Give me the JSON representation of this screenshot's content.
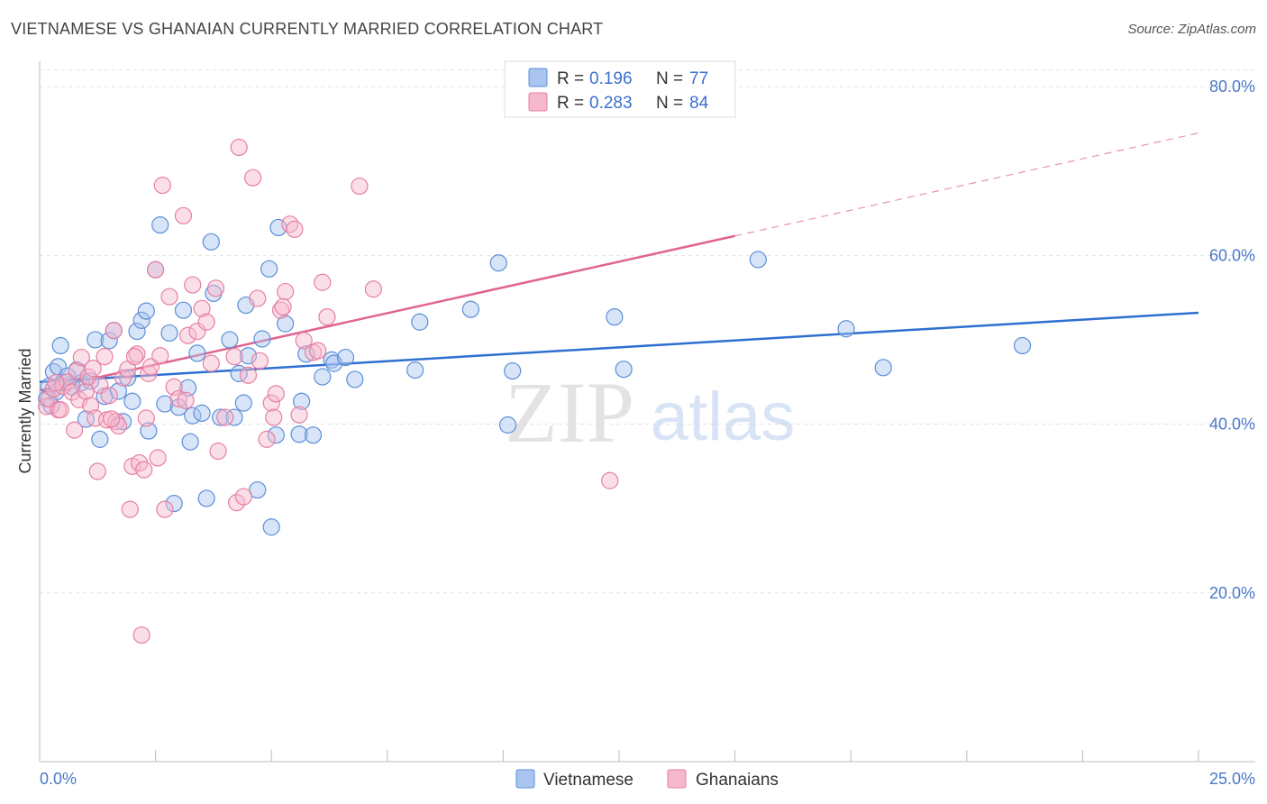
{
  "title": "VIETNAMESE VS GHANAIAN CURRENTLY MARRIED CORRELATION CHART",
  "source": "Source: ZipAtlas.com",
  "chart_data": {
    "type": "scatter",
    "ylabel": "Currently Married",
    "xlim": [
      0,
      25
    ],
    "ylim": [
      0,
      83
    ],
    "x_tick_labels": [
      "0.0%",
      "25.0%"
    ],
    "y_ticks": [
      20,
      40,
      60,
      80
    ],
    "y_tick_labels": [
      "20.0%",
      "40.0%",
      "60.0%",
      "80.0%"
    ],
    "grid": true,
    "watermark": {
      "zip": "ZIP",
      "atlas": "atlas"
    },
    "legend": [
      {
        "r_label": "R =",
        "r_value": "0.196",
        "n_label": "N =",
        "n_value": "77",
        "color": "#a9c4ee",
        "stroke": "#5b8fd9"
      },
      {
        "r_label": "R =",
        "r_value": "0.283",
        "n_label": "N =",
        "n_value": "84",
        "color": "#f6b8cc",
        "stroke": "#e77fa3"
      }
    ],
    "series": [
      {
        "name": "Vietnamese",
        "fill": "rgba(169,196,238,0.45)",
        "stroke": "#5b8fd9",
        "line_color": "#2f6fd1",
        "trend": {
          "x0": 0,
          "y0": 45.0,
          "x1": 25,
          "y1": 53.2,
          "solid_to": 25
        },
        "points": [
          [
            0.2,
            44.5
          ],
          [
            0.3,
            46.2
          ],
          [
            0.35,
            43.8
          ],
          [
            0.4,
            46.8
          ],
          [
            0.45,
            49.3
          ],
          [
            0.5,
            44.9
          ],
          [
            0.6,
            45.7
          ],
          [
            0.7,
            44.4
          ],
          [
            0.8,
            46.4
          ],
          [
            0.9,
            44.9
          ],
          [
            1.0,
            40.6
          ],
          [
            1.1,
            45.1
          ],
          [
            1.2,
            50.0
          ],
          [
            1.3,
            38.2
          ],
          [
            1.4,
            43.3
          ],
          [
            1.5,
            49.9
          ],
          [
            1.6,
            51.1
          ],
          [
            1.7,
            43.9
          ],
          [
            1.8,
            40.3
          ],
          [
            1.9,
            45.5
          ],
          [
            2.0,
            42.7
          ],
          [
            2.1,
            51.0
          ],
          [
            2.2,
            52.3
          ],
          [
            2.3,
            53.4
          ],
          [
            2.35,
            39.2
          ],
          [
            2.5,
            58.3
          ],
          [
            2.6,
            63.6
          ],
          [
            2.7,
            42.4
          ],
          [
            2.8,
            50.8
          ],
          [
            2.9,
            30.6
          ],
          [
            3.0,
            42.0
          ],
          [
            3.1,
            53.5
          ],
          [
            3.2,
            44.3
          ],
          [
            3.25,
            37.9
          ],
          [
            3.3,
            41.0
          ],
          [
            3.4,
            48.4
          ],
          [
            3.5,
            41.3
          ],
          [
            3.6,
            31.2
          ],
          [
            3.7,
            61.6
          ],
          [
            3.75,
            55.5
          ],
          [
            3.9,
            40.8
          ],
          [
            4.1,
            50.0
          ],
          [
            4.2,
            40.8
          ],
          [
            4.3,
            46.0
          ],
          [
            4.4,
            42.5
          ],
          [
            4.45,
            54.1
          ],
          [
            4.5,
            48.1
          ],
          [
            4.7,
            32.2
          ],
          [
            4.8,
            50.1
          ],
          [
            4.95,
            58.4
          ],
          [
            5.0,
            27.8
          ],
          [
            5.1,
            38.7
          ],
          [
            5.15,
            63.3
          ],
          [
            5.3,
            51.9
          ],
          [
            5.6,
            38.8
          ],
          [
            5.65,
            42.7
          ],
          [
            5.75,
            48.3
          ],
          [
            5.9,
            38.7
          ],
          [
            6.1,
            45.6
          ],
          [
            6.3,
            47.6
          ],
          [
            6.35,
            47.2
          ],
          [
            6.6,
            47.9
          ],
          [
            6.8,
            45.3
          ],
          [
            8.2,
            52.1
          ],
          [
            8.1,
            46.4
          ],
          [
            9.3,
            53.6
          ],
          [
            9.9,
            59.1
          ],
          [
            10.2,
            46.3
          ],
          [
            10.1,
            39.9
          ],
          [
            12.4,
            52.7
          ],
          [
            12.6,
            46.5
          ],
          [
            15.5,
            59.5
          ],
          [
            17.4,
            51.3
          ],
          [
            18.2,
            46.7
          ],
          [
            21.2,
            49.3
          ],
          [
            0.15,
            43.0
          ],
          [
            0.25,
            42.2
          ]
        ]
      },
      {
        "name": "Ghanaians",
        "fill": "rgba(246,184,204,0.45)",
        "stroke": "#e77fa3",
        "line_color": "#e0648f",
        "trend": {
          "x0": 0,
          "y0": 44.0,
          "x1": 25,
          "y1": 74.5,
          "solid_to": 15
        },
        "points": [
          [
            0.15,
            42.1
          ],
          [
            0.2,
            43.0
          ],
          [
            0.3,
            44.2
          ],
          [
            0.4,
            41.7
          ],
          [
            0.5,
            44.5
          ],
          [
            0.6,
            45.0
          ],
          [
            0.7,
            43.8
          ],
          [
            0.75,
            39.3
          ],
          [
            0.8,
            46.3
          ],
          [
            0.85,
            42.9
          ],
          [
            0.9,
            47.9
          ],
          [
            1.0,
            43.9
          ],
          [
            1.05,
            45.6
          ],
          [
            1.1,
            42.2
          ],
          [
            1.2,
            40.7
          ],
          [
            1.25,
            34.4
          ],
          [
            1.3,
            44.6
          ],
          [
            1.4,
            48.0
          ],
          [
            1.45,
            40.5
          ],
          [
            1.5,
            43.4
          ],
          [
            1.6,
            51.1
          ],
          [
            1.65,
            40.3
          ],
          [
            1.7,
            39.8
          ],
          [
            1.8,
            45.5
          ],
          [
            1.9,
            46.5
          ],
          [
            1.95,
            29.9
          ],
          [
            2.0,
            35.0
          ],
          [
            2.1,
            48.3
          ],
          [
            2.15,
            35.4
          ],
          [
            2.2,
            15.0
          ],
          [
            2.25,
            34.6
          ],
          [
            2.3,
            40.7
          ],
          [
            2.35,
            46.0
          ],
          [
            2.4,
            46.8
          ],
          [
            2.5,
            58.3
          ],
          [
            2.55,
            36.0
          ],
          [
            2.6,
            48.1
          ],
          [
            2.65,
            68.3
          ],
          [
            2.7,
            29.9
          ],
          [
            2.8,
            55.1
          ],
          [
            2.9,
            44.4
          ],
          [
            3.0,
            43.0
          ],
          [
            3.1,
            64.7
          ],
          [
            3.2,
            50.5
          ],
          [
            3.3,
            56.5
          ],
          [
            3.4,
            51.0
          ],
          [
            3.5,
            53.7
          ],
          [
            3.6,
            52.1
          ],
          [
            3.7,
            47.2
          ],
          [
            3.8,
            56.1
          ],
          [
            3.85,
            36.8
          ],
          [
            4.0,
            40.8
          ],
          [
            4.2,
            48.0
          ],
          [
            4.25,
            30.7
          ],
          [
            4.3,
            72.8
          ],
          [
            4.4,
            31.4
          ],
          [
            4.5,
            45.8
          ],
          [
            4.6,
            69.2
          ],
          [
            4.7,
            54.9
          ],
          [
            4.75,
            47.5
          ],
          [
            4.9,
            38.2
          ],
          [
            5.0,
            42.5
          ],
          [
            5.05,
            40.8
          ],
          [
            5.1,
            43.6
          ],
          [
            5.2,
            53.5
          ],
          [
            5.3,
            55.7
          ],
          [
            5.4,
            63.7
          ],
          [
            5.5,
            63.1
          ],
          [
            5.6,
            41.1
          ],
          [
            5.7,
            49.9
          ],
          [
            5.9,
            48.5
          ],
          [
            6.0,
            48.7
          ],
          [
            6.1,
            56.8
          ],
          [
            6.2,
            52.7
          ],
          [
            6.9,
            68.2
          ],
          [
            7.2,
            56.0
          ],
          [
            0.35,
            44.9
          ],
          [
            0.45,
            41.7
          ],
          [
            1.15,
            46.6
          ],
          [
            1.55,
            40.6
          ],
          [
            2.05,
            48.0
          ],
          [
            12.3,
            33.3
          ],
          [
            5.25,
            53.9
          ],
          [
            3.15,
            42.8
          ]
        ]
      }
    ]
  },
  "bottom_legend": [
    {
      "label": "Vietnamese",
      "color": "#a9c4ee",
      "stroke": "#5b8fd9"
    },
    {
      "label": "Ghanaians",
      "color": "#f6b8cc",
      "stroke": "#e77fa3"
    }
  ]
}
